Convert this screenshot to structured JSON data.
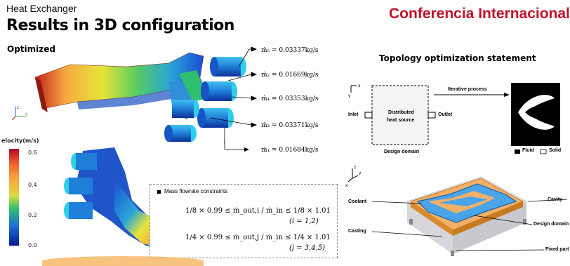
{
  "header": {
    "small_title": "Heat Exchanger",
    "main_title": "Results in 3D configuration",
    "conference": "Conferencia Internacional"
  },
  "left_panel": {
    "subtitle": "Optimized",
    "flow_labels": [
      "ṁ₅ = 0.03337kg/s",
      "ṁ₂ = 0.01669kg/s",
      "ṁ₄ = 0.03353kg/s",
      "ṁ₃ = 0.03371kg/s",
      "ṁ₁ = 0.01684kg/s"
    ],
    "colorbar": {
      "title": "elocity(m/s)",
      "ticks": [
        "0.6",
        "0.4",
        "0.2",
        "0.0"
      ],
      "colors": [
        "#b40426",
        "#f7a940",
        "#dddc3a",
        "#2fbf71",
        "#1c6bd6",
        "#0a1a8f"
      ]
    },
    "mass_box": {
      "title": "Mass flowrate constraints",
      "eq1": "1/8 × 0.99 ≤ ṁ_out,i / ṁ_in ≤ 1/8 × 1.01",
      "eq1_cond": "(i = 1,2)",
      "eq2": "1/4 × 0.99 ≤ ṁ_out,j / ṁ_in ≤ 1/4 × 1.01",
      "eq2_cond": "(j = 3,4,5)"
    }
  },
  "right_panel": {
    "title": "Topology optimization statement",
    "iterative": "Iterative process",
    "inlet": "Inlet",
    "outlet": "Outlet",
    "distributed": "Distributed",
    "heat_source": "heat source",
    "design_domain": "Design domain",
    "fluid": "Fluid",
    "solid": "Solid",
    "labels_3d": {
      "coolant": "Coolant",
      "casting": "Casting",
      "design_domain": "Design domain",
      "cavity": "Cavity",
      "fixed_part": "Fixed part"
    },
    "axes": {
      "x": "x",
      "y": "y",
      "z": "z"
    }
  }
}
